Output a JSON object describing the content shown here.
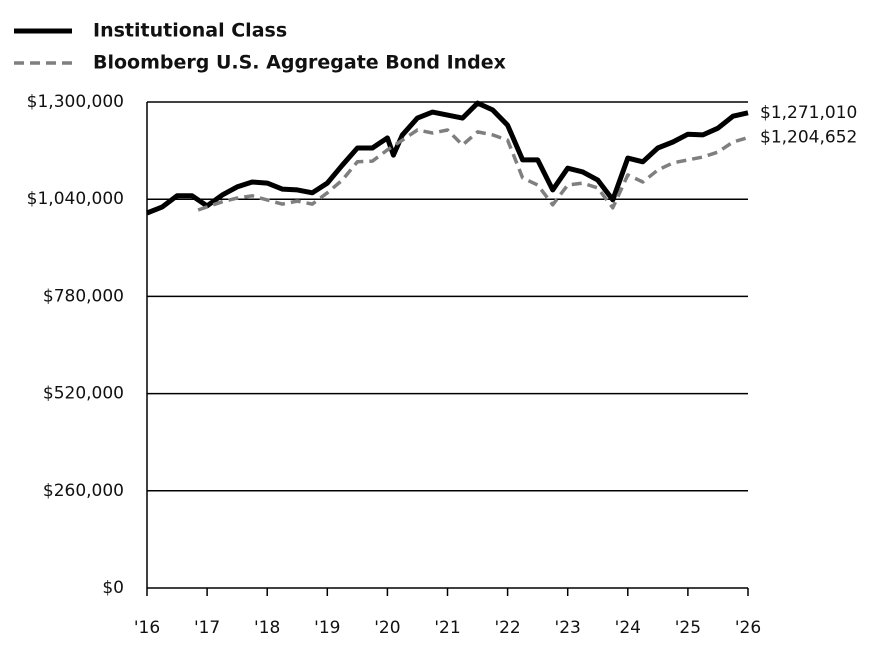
{
  "chart_data": {
    "type": "line",
    "grid": true,
    "legend": "top-left",
    "xlim": [
      2016,
      2026
    ],
    "xticks": [
      {
        "value": 2016,
        "label": "'16"
      },
      {
        "value": 2017,
        "label": "'17"
      },
      {
        "value": 2018,
        "label": "'18"
      },
      {
        "value": 2019,
        "label": "'19"
      },
      {
        "value": 2020,
        "label": "'20"
      },
      {
        "value": 2021,
        "label": "'21"
      },
      {
        "value": 2022,
        "label": "'22"
      },
      {
        "value": 2023,
        "label": "'23"
      },
      {
        "value": 2024,
        "label": "'24"
      },
      {
        "value": 2025,
        "label": "'25"
      },
      {
        "value": 2026,
        "label": "'26"
      }
    ],
    "ylim": [
      0,
      1300000
    ],
    "yticks": [
      {
        "value": 0,
        "label": "$0"
      },
      {
        "value": 260000,
        "label": "$260,000"
      },
      {
        "value": 520000,
        "label": "$520,000"
      },
      {
        "value": 780000,
        "label": "$780,000"
      },
      {
        "value": 1040000,
        "label": "$1,040,000"
      },
      {
        "value": 1300000,
        "label": "$1,300,000"
      }
    ],
    "series": [
      {
        "name": "Institutional Class",
        "color": "#000000",
        "dash": false,
        "x": [
          2016,
          2016.25,
          2016.5,
          2016.75,
          2017,
          2017.25,
          2017.5,
          2017.75,
          2018,
          2018.25,
          2018.5,
          2018.75,
          2019,
          2019.25,
          2019.5,
          2019.75,
          2020,
          2020.1,
          2020.25,
          2020.5,
          2020.75,
          2021,
          2021.25,
          2021.5,
          2021.75,
          2022,
          2022.25,
          2022.5,
          2022.75,
          2023,
          2023.25,
          2023.5,
          2023.75,
          2024,
          2024.25,
          2024.5,
          2024.75,
          2025,
          2025.25,
          2025.5,
          2025.75,
          2026
        ],
        "values": [
          1003000,
          1019000,
          1049000,
          1049000,
          1022000,
          1051000,
          1073000,
          1086000,
          1083000,
          1067000,
          1065000,
          1057000,
          1083000,
          1131000,
          1177000,
          1177000,
          1204000,
          1158000,
          1212000,
          1257000,
          1273000,
          1265000,
          1257000,
          1297000,
          1279000,
          1238000,
          1145000,
          1145000,
          1065000,
          1123000,
          1113000,
          1091000,
          1038000,
          1150000,
          1140000,
          1177000,
          1193000,
          1214000,
          1212000,
          1230000,
          1262000,
          1271010
        ],
        "value_labels": [
          null,
          null,
          null,
          null,
          null,
          null,
          null,
          null,
          null,
          null,
          null,
          null,
          null,
          null,
          null,
          null,
          null,
          null,
          null,
          null,
          null,
          null,
          null,
          null,
          null,
          null,
          null,
          null,
          null,
          null,
          null,
          null,
          null,
          null,
          null,
          null,
          null,
          null,
          null,
          null,
          null,
          "$1,271,010"
        ]
      },
      {
        "name": "Bloomberg U.S. Aggregate Bond Index",
        "color": "#7f7f7f",
        "dash": true,
        "x": [
          2016.85,
          2017.25,
          2017.5,
          2017.75,
          2018,
          2018.25,
          2018.5,
          2018.75,
          2019,
          2019.25,
          2019.5,
          2019.75,
          2020,
          2020.25,
          2020.5,
          2020.75,
          2021,
          2021.25,
          2021.5,
          2021.75,
          2022,
          2022.25,
          2022.5,
          2022.75,
          2023,
          2023.25,
          2023.5,
          2023.75,
          2024,
          2024.25,
          2024.5,
          2024.75,
          2025,
          2025.25,
          2025.5,
          2025.75,
          2026
        ],
        "values": [
          1011000,
          1033000,
          1043000,
          1049000,
          1038000,
          1027000,
          1035000,
          1027000,
          1057000,
          1091000,
          1140000,
          1142000,
          1172000,
          1198000,
          1225000,
          1217000,
          1225000,
          1185000,
          1220000,
          1212000,
          1198000,
          1097000,
          1078000,
          1025000,
          1078000,
          1083000,
          1070000,
          1017000,
          1105000,
          1086000,
          1118000,
          1137000,
          1145000,
          1153000,
          1166000,
          1193000,
          1204652
        ],
        "value_labels": [
          null,
          null,
          null,
          null,
          null,
          null,
          null,
          null,
          null,
          null,
          null,
          null,
          null,
          null,
          null,
          null,
          null,
          null,
          null,
          null,
          null,
          null,
          null,
          null,
          null,
          null,
          null,
          null,
          null,
          null,
          null,
          null,
          null,
          null,
          null,
          null,
          "$1,204,652"
        ]
      }
    ]
  }
}
